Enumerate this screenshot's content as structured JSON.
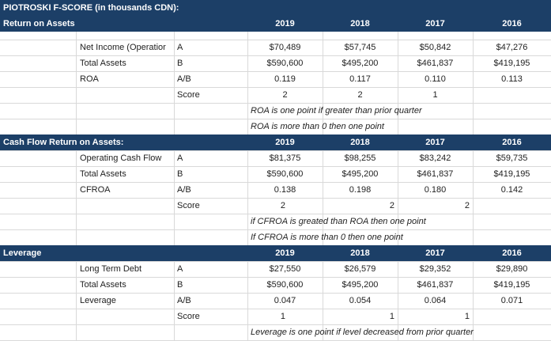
{
  "title": "PIOTROSKI F-SCORE (in thousands CDN):",
  "sections": [
    {
      "name": "Return on Assets",
      "years": [
        "2019",
        "2018",
        "2017",
        "2016"
      ],
      "rows": [
        {
          "label": "Net Income (Operatior",
          "key": "A",
          "values": [
            "$70,489",
            "$57,745",
            "$50,842",
            "$47,276"
          ]
        },
        {
          "label": "Total Assets",
          "key": "B",
          "values": [
            "$590,600",
            "$495,200",
            "$461,837",
            "$419,195"
          ]
        },
        {
          "label": "ROA",
          "key": "A/B",
          "values": [
            "0.119",
            "0.117",
            "0.110",
            "0.113"
          ]
        }
      ],
      "score_label": "Score",
      "scores": [
        "2",
        "2",
        "1"
      ],
      "notes": [
        "ROA is one point if greater than prior quarter",
        "ROA is more than 0 then one point"
      ]
    },
    {
      "name": "Cash Flow Return on Assets:",
      "years": [
        "2019",
        "2018",
        "2017",
        "2016"
      ],
      "rows": [
        {
          "label": "Operating Cash Flow",
          "key": "A",
          "values": [
            "$81,375",
            "$98,255",
            "$83,242",
            "$59,735"
          ]
        },
        {
          "label": "Total Assets",
          "key": "B",
          "values": [
            "$590,600",
            "$495,200",
            "$461,837",
            "$419,195"
          ]
        },
        {
          "label": "CFROA",
          "key": "A/B",
          "values": [
            "0.138",
            "0.198",
            "0.180",
            "0.142"
          ]
        }
      ],
      "score_label": "Score",
      "scores": [
        "2",
        "2",
        "2"
      ],
      "notes": [
        "if CFROA is greated than ROA then one point",
        "If CFROA is more than 0 then one point"
      ]
    },
    {
      "name": "Leverage",
      "years": [
        "2019",
        "2018",
        "2017",
        "2016"
      ],
      "rows": [
        {
          "label": "Long Term Debt",
          "key": "A",
          "values": [
            "$27,550",
            "$26,579",
            "$29,352",
            "$29,890"
          ]
        },
        {
          "label": "Total Assets",
          "key": "B",
          "values": [
            "$590,600",
            "$495,200",
            "$461,837",
            "$419,195"
          ]
        },
        {
          "label": "Leverage",
          "key": "A/B",
          "values": [
            "0.047",
            "0.054",
            "0.064",
            "0.071"
          ]
        }
      ],
      "score_label": "Score",
      "scores": [
        "1",
        "1",
        "1"
      ],
      "notes": [
        "Leverage is one point if level decreased from prior quarter"
      ]
    }
  ],
  "colors": {
    "header_bg": "#1c3f67",
    "header_text": "#ffffff",
    "grid": "#d9d9d9"
  }
}
